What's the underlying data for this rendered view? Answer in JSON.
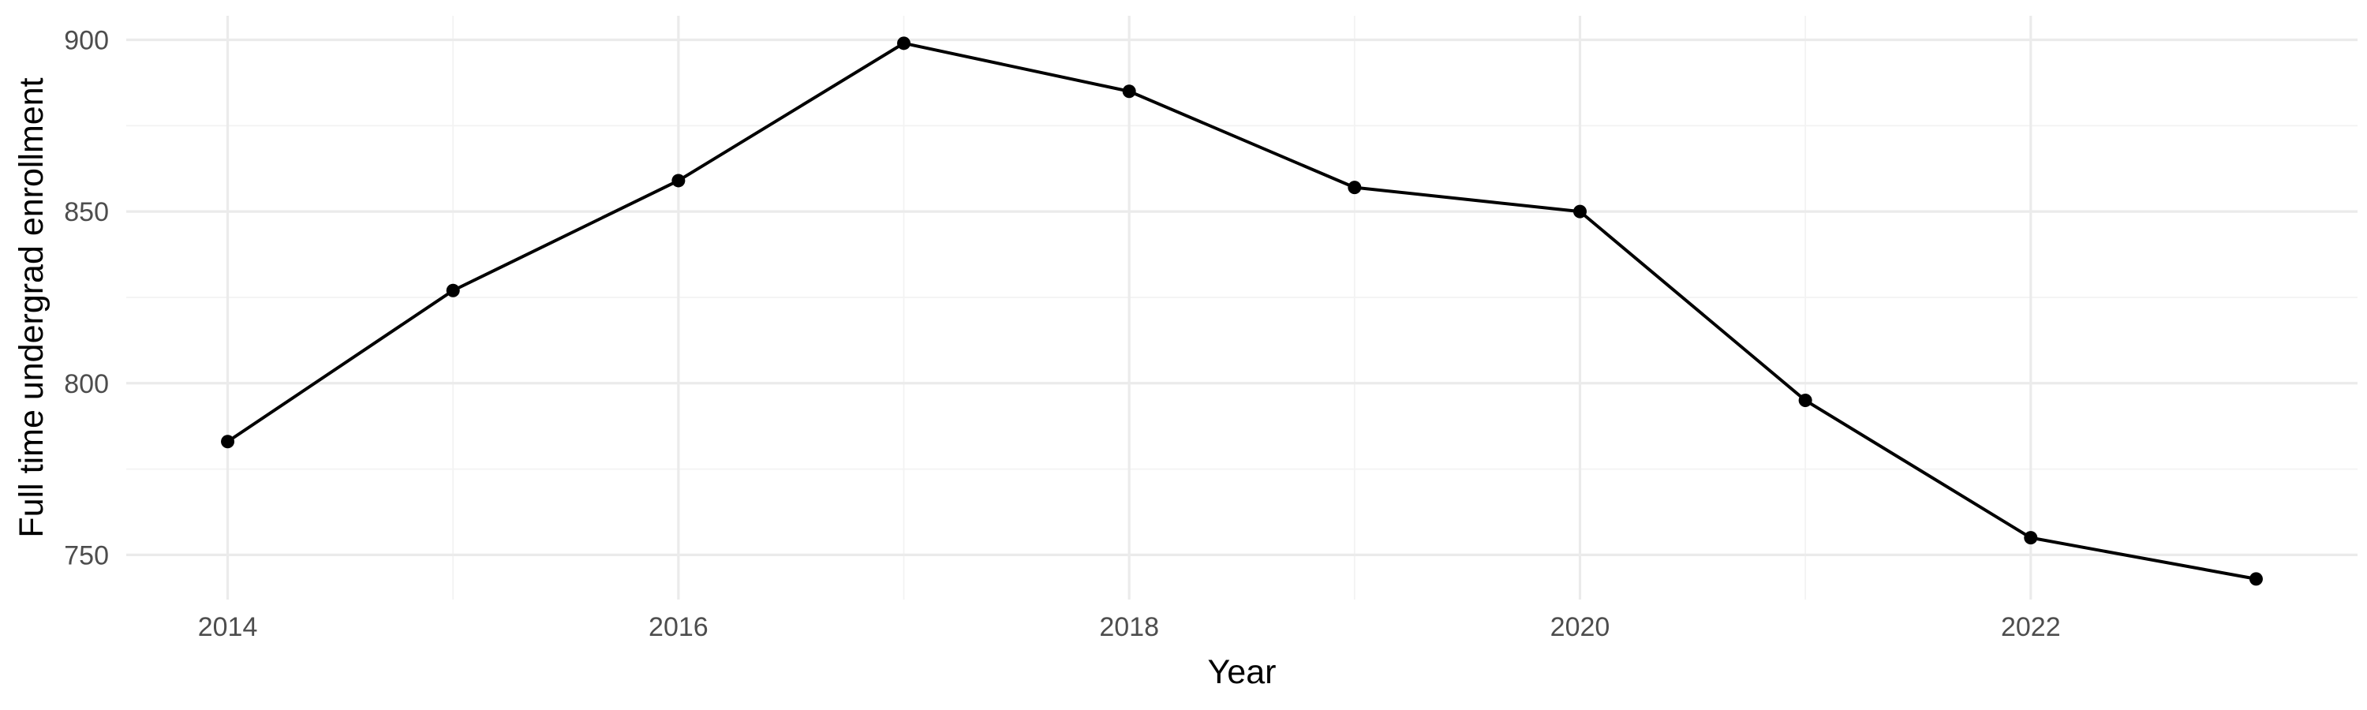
{
  "chart_data": {
    "type": "line",
    "xlabel": "Year",
    "ylabel": "Full time undergrad enrollment",
    "x": [
      2014,
      2015,
      2016,
      2017,
      2018,
      2019,
      2020,
      2021,
      2022,
      2023
    ],
    "series": [
      {
        "values": [
          783,
          827,
          859,
          899,
          885,
          857,
          850,
          795,
          755,
          743
        ]
      }
    ],
    "x_ticks": [
      "2014",
      "2016",
      "2018",
      "2020",
      "2022"
    ],
    "y_ticks": [
      "750",
      "800",
      "850",
      "900"
    ],
    "xlim": [
      2013.55,
      2023.45
    ],
    "ylim": [
      737,
      907
    ],
    "grid": true,
    "legend": "none",
    "colors": {
      "line": "#000000",
      "grid": "#ebebeb",
      "tick_text": "#4d4d4d"
    }
  }
}
